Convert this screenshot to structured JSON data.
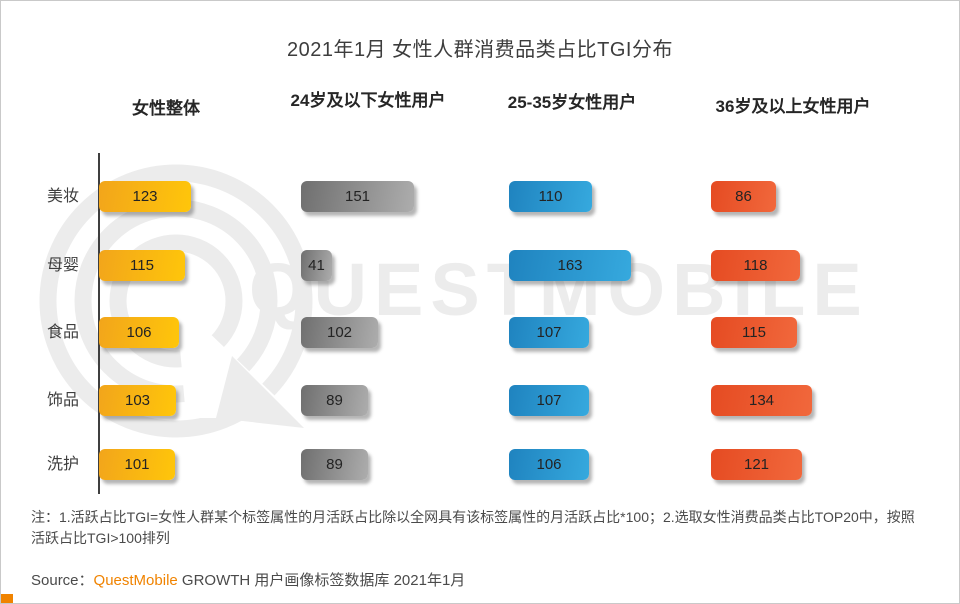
{
  "title": "2021年1月 女性人群消费品类占比TGI分布",
  "watermark": {
    "text": "QUESTMOBILE"
  },
  "chart_data": {
    "type": "bar",
    "orientation": "horizontal",
    "title": "2021年1月 女性人群消费品类占比TGI分布",
    "categories": [
      "美妆",
      "母婴",
      "食品",
      "饰品",
      "洗护"
    ],
    "series": [
      {
        "name": "女性整体",
        "values": [
          123,
          115,
          106,
          103,
          101
        ],
        "color_start": "#F2A51B",
        "color_end": "#FFC60A"
      },
      {
        "name": "24岁及以下女性用户",
        "values": [
          151,
          41,
          102,
          89,
          89
        ],
        "color_start": "#6F6F6F",
        "color_end": "#ADADAD"
      },
      {
        "name": "25-35岁女性用户",
        "values": [
          110,
          163,
          107,
          107,
          106
        ],
        "color_start": "#1F83BF",
        "color_end": "#36A9DE"
      },
      {
        "name": "36岁及以上女性用户",
        "values": [
          86,
          118,
          115,
          134,
          121
        ],
        "color_start": "#E54B22",
        "color_end": "#F1683C"
      }
    ],
    "value_axis": {
      "min": 0,
      "data_labels": "shown_on_bars",
      "gridlines": false
    },
    "legend_position": "column_headers_top"
  },
  "notes": "注：1.活跃占比TGI=女性人群某个标签属性的月活跃占比除以全网具有该标签属性的月活跃占比*100；2.选取女性消费品类占比TOP20中，按照活跃占比TGI>100排列",
  "source": {
    "prefix": "Source：",
    "brand": "QuestMobile",
    "suffix": " GROWTH 用户画像标签数据库 2021年1月",
    "brand_color": "#F08300"
  },
  "accents": {
    "corner_color": "#F08300",
    "watermark_color": "#ECECEC"
  }
}
